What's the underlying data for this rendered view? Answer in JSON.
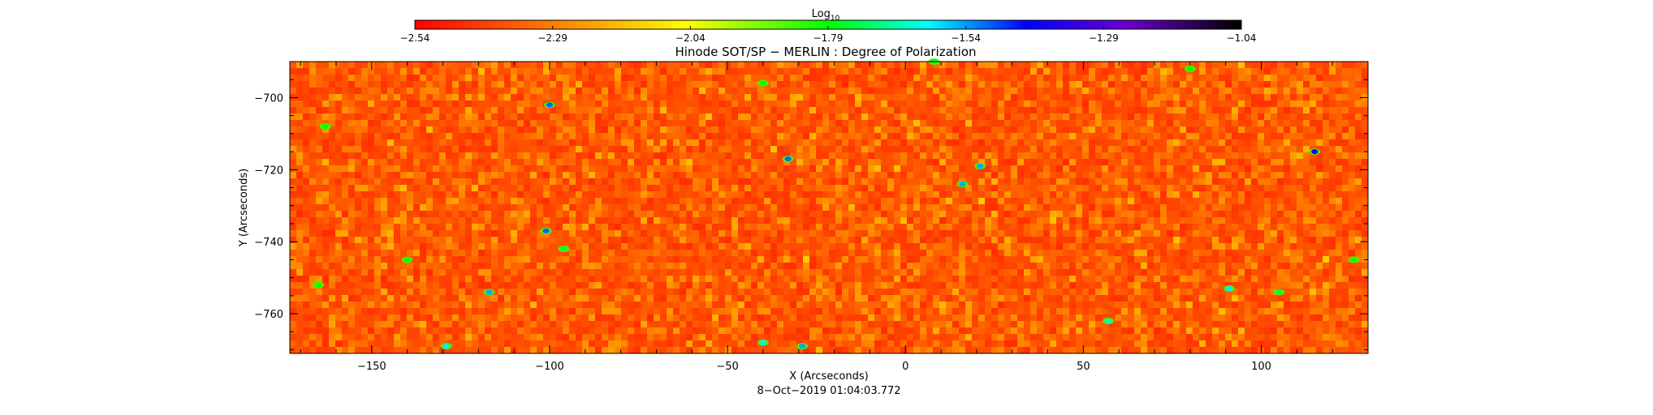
{
  "chart_data": {
    "type": "heatmap",
    "title": "Hinode SOT/SP − MERLIN : Degree of Polarization",
    "colorbar": {
      "label_base": "Log",
      "label_sub": "10",
      "min": -2.54,
      "max": -1.04,
      "ticks": [
        -2.54,
        -2.29,
        -2.04,
        -1.79,
        -1.54,
        -1.29,
        -1.04
      ],
      "tick_labels": [
        "−2.54",
        "−2.29",
        "−2.04",
        "−1.79",
        "−1.54",
        "−1.29",
        "−1.04"
      ],
      "colors": [
        "#ff0000",
        "#ff8000",
        "#ffff00",
        "#00ff00",
        "#00ffff",
        "#0000ff",
        "#6a00d0",
        "#000000"
      ]
    },
    "xlabel": "X (Arcseconds)",
    "ylabel": "Y (Arcseconds)",
    "xlim": [
      -173,
      130
    ],
    "ylim": [
      -771,
      -690
    ],
    "x_ticks": [
      -150,
      -100,
      -50,
      0,
      50,
      100
    ],
    "x_tick_labels": [
      "−150",
      "−100",
      "−50",
      "0",
      "50",
      "100"
    ],
    "y_ticks": [
      -700,
      -720,
      -740,
      -760
    ],
    "y_tick_labels": [
      "−700",
      "−720",
      "−740",
      "−760"
    ],
    "background_value_range": [
      -2.54,
      -2.2
    ],
    "features": [
      {
        "x": -100,
        "y": -702,
        "value": -1.5
      },
      {
        "x": -33,
        "y": -717,
        "value": -1.5
      },
      {
        "x": 21,
        "y": -719,
        "value": -1.55
      },
      {
        "x": 16,
        "y": -724,
        "value": -1.55
      },
      {
        "x": 115,
        "y": -715,
        "value": -1.4
      },
      {
        "x": -101,
        "y": -737,
        "value": -1.5
      },
      {
        "x": -96,
        "y": -742,
        "value": -1.75
      },
      {
        "x": -117,
        "y": -754,
        "value": -1.55
      },
      {
        "x": 57,
        "y": -762,
        "value": -1.65
      },
      {
        "x": -29,
        "y": -769,
        "value": -1.55
      },
      {
        "x": -40,
        "y": -768,
        "value": -1.6
      },
      {
        "x": 91,
        "y": -753,
        "value": -1.6
      },
      {
        "x": 126,
        "y": -745,
        "value": -1.8
      },
      {
        "x": -165,
        "y": -752,
        "value": -1.8
      },
      {
        "x": -140,
        "y": -745,
        "value": -1.8
      },
      {
        "x": 105,
        "y": -754,
        "value": -1.75
      },
      {
        "x": -163,
        "y": -708,
        "value": -1.8
      },
      {
        "x": -40,
        "y": -696,
        "value": -1.8
      },
      {
        "x": 8,
        "y": -690,
        "value": -1.75
      },
      {
        "x": 80,
        "y": -692,
        "value": -1.8
      },
      {
        "x": -129,
        "y": -769,
        "value": -1.6
      }
    ],
    "date_label": "8−Oct−2019 01:04:03.772"
  }
}
